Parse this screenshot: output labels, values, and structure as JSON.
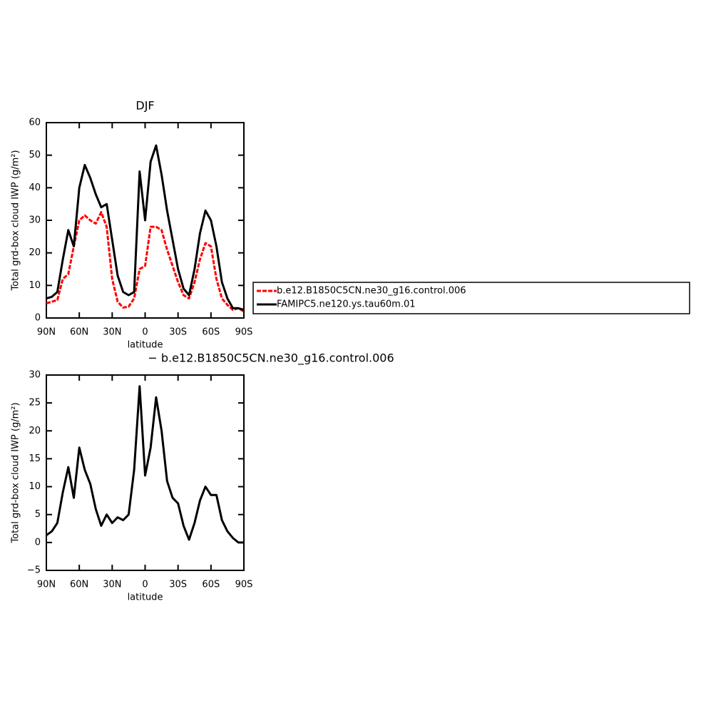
{
  "chart_data": [
    {
      "type": "line",
      "title": "DJF",
      "xlabel": "latitude",
      "ylabel": "Total grd-box cloud IWP (g/m²)",
      "x": [
        90,
        85,
        80,
        75,
        70,
        65,
        60,
        55,
        50,
        45,
        40,
        35,
        30,
        25,
        20,
        15,
        10,
        5,
        0,
        -5,
        -10,
        -15,
        -20,
        -25,
        -30,
        -35,
        -40,
        -45,
        -50,
        -55,
        -60,
        -65,
        -70,
        -75,
        -80,
        -85,
        -90
      ],
      "series": [
        {
          "name": "b.e12.B1850C5CN.ne30_g16.control.006",
          "color": "#ff0000",
          "dashed": true,
          "values": [
            4.5,
            5,
            5.5,
            12,
            13.5,
            22,
            30,
            31.5,
            30,
            29,
            32.5,
            28,
            12,
            5,
            3.2,
            3.5,
            6,
            15,
            16,
            28,
            28,
            27,
            21,
            16,
            11,
            7,
            6,
            11,
            18,
            23,
            22,
            12,
            6,
            4,
            2.5,
            3,
            2
          ]
        },
        {
          "name": "FAMIPC5.ne120.ys.tau60m.01",
          "color": "#000000",
          "dashed": false,
          "values": [
            6,
            6.5,
            8,
            18,
            27,
            22,
            40,
            47,
            43,
            38,
            34,
            35,
            24,
            13,
            8,
            7,
            8,
            45,
            30,
            48,
            53,
            44,
            33,
            24,
            15,
            9,
            7,
            15,
            26,
            33,
            30,
            22,
            11,
            6,
            3,
            3,
            2.5
          ]
        }
      ],
      "xlim": [
        90,
        -90
      ],
      "ylim": [
        0,
        60
      ],
      "xticks": [
        {
          "value": 90,
          "label": "90N"
        },
        {
          "value": 60,
          "label": "60N"
        },
        {
          "value": 30,
          "label": "30N"
        },
        0,
        {
          "value": -30,
          "label": "30S"
        },
        {
          "value": -60,
          "label": "60S"
        },
        {
          "value": -90,
          "label": "90S"
        }
      ],
      "yticks": [
        0,
        10,
        20,
        30,
        40,
        50,
        60
      ],
      "legend": "right"
    },
    {
      "type": "line",
      "title": "− b.e12.B1850C5CN.ne30_g16.control.006",
      "xlabel": "latitude",
      "ylabel": "Total grd-box cloud IWP (g/m²)",
      "x": [
        90,
        85,
        80,
        75,
        70,
        65,
        60,
        55,
        50,
        45,
        40,
        35,
        30,
        25,
        20,
        15,
        10,
        5,
        0,
        -5,
        -10,
        -15,
        -20,
        -25,
        -30,
        -35,
        -40,
        -45,
        -50,
        -55,
        -60,
        -65,
        -70,
        -75,
        -80,
        -85,
        -90
      ],
      "series": [
        {
          "color": "#000000",
          "dashed": false,
          "values": [
            1.3,
            2,
            3.5,
            9,
            13.5,
            8,
            17,
            13,
            10.5,
            6,
            3,
            5,
            3.5,
            4.5,
            4,
            5,
            13,
            28,
            12,
            17,
            26,
            20,
            11,
            8,
            7,
            3,
            0.5,
            3.5,
            7.5,
            10,
            8.5,
            8.5,
            4,
            2,
            0.8,
            0,
            0
          ]
        }
      ],
      "xlim": [
        90,
        -90
      ],
      "ylim": [
        -5,
        30
      ],
      "xticks": [
        {
          "value": 90,
          "label": "90N"
        },
        {
          "value": 60,
          "label": "60N"
        },
        {
          "value": 30,
          "label": "30N"
        },
        0,
        {
          "value": -30,
          "label": "30S"
        },
        {
          "value": -60,
          "label": "60S"
        },
        {
          "value": -90,
          "label": "90S"
        }
      ],
      "yticks": [
        {
          "value": -5,
          "label": "−5"
        },
        0,
        5,
        10,
        15,
        20,
        25,
        30
      ]
    }
  ]
}
